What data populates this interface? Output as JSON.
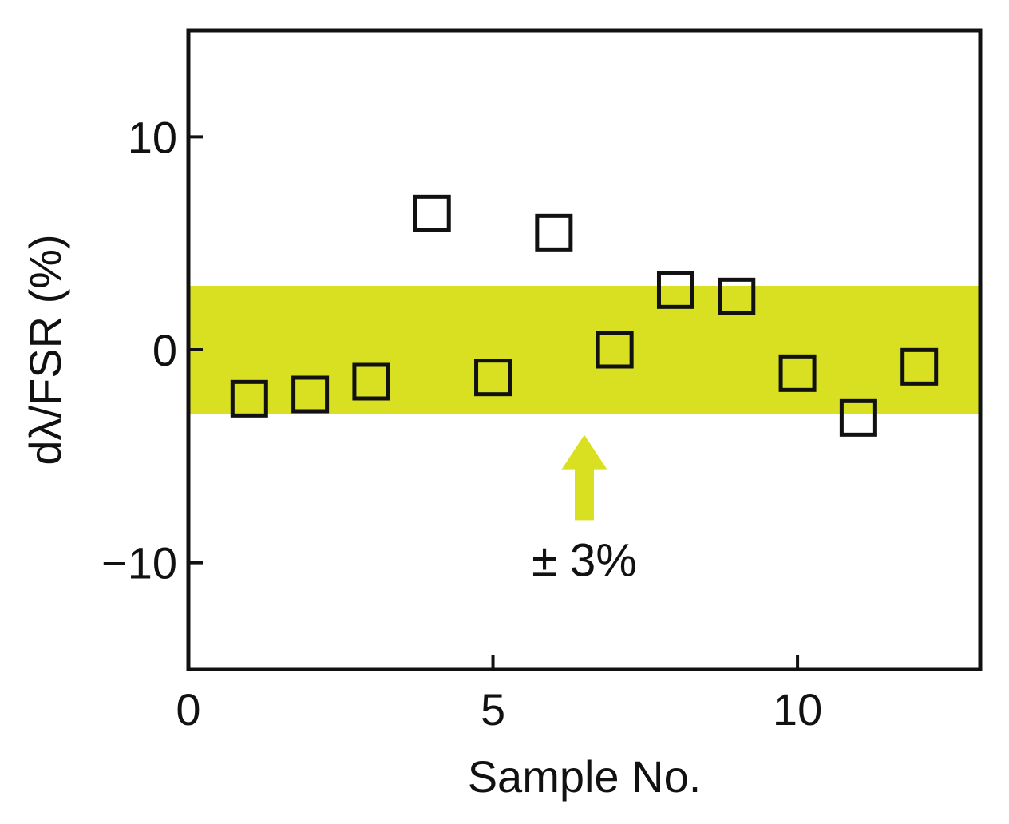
{
  "chart_data": {
    "type": "scatter",
    "title": "",
    "xlabel": "Sample No.",
    "ylabel": "dλ/FSR (%)",
    "xlim": [
      0,
      13
    ],
    "ylim": [
      -15,
      15
    ],
    "xticks": [
      0,
      5,
      10
    ],
    "yticks": [
      -10,
      0,
      10
    ],
    "xtick_labels": [
      "0",
      "5",
      "10"
    ],
    "ytick_labels": [
      "−10",
      "0",
      "10"
    ],
    "grid": false,
    "marker": "open-square",
    "series": [
      {
        "x": [
          1,
          2,
          3,
          4,
          5,
          6,
          7,
          8,
          9,
          10,
          11,
          12
        ],
        "y": [
          -2.3,
          -2.1,
          -1.5,
          6.4,
          -1.3,
          5.5,
          0.0,
          2.8,
          2.5,
          -1.1,
          -3.2,
          -0.8
        ]
      }
    ],
    "band": {
      "y_min": -3,
      "y_max": 3,
      "color": "#d9e021"
    },
    "annotation": {
      "text": "± 3%",
      "x": 6.5,
      "y_tail": -8,
      "y_head": -4,
      "color": "#d9e021"
    },
    "colors": {
      "marker": "#111111",
      "axis": "#111111",
      "band": "#d9e021"
    }
  }
}
